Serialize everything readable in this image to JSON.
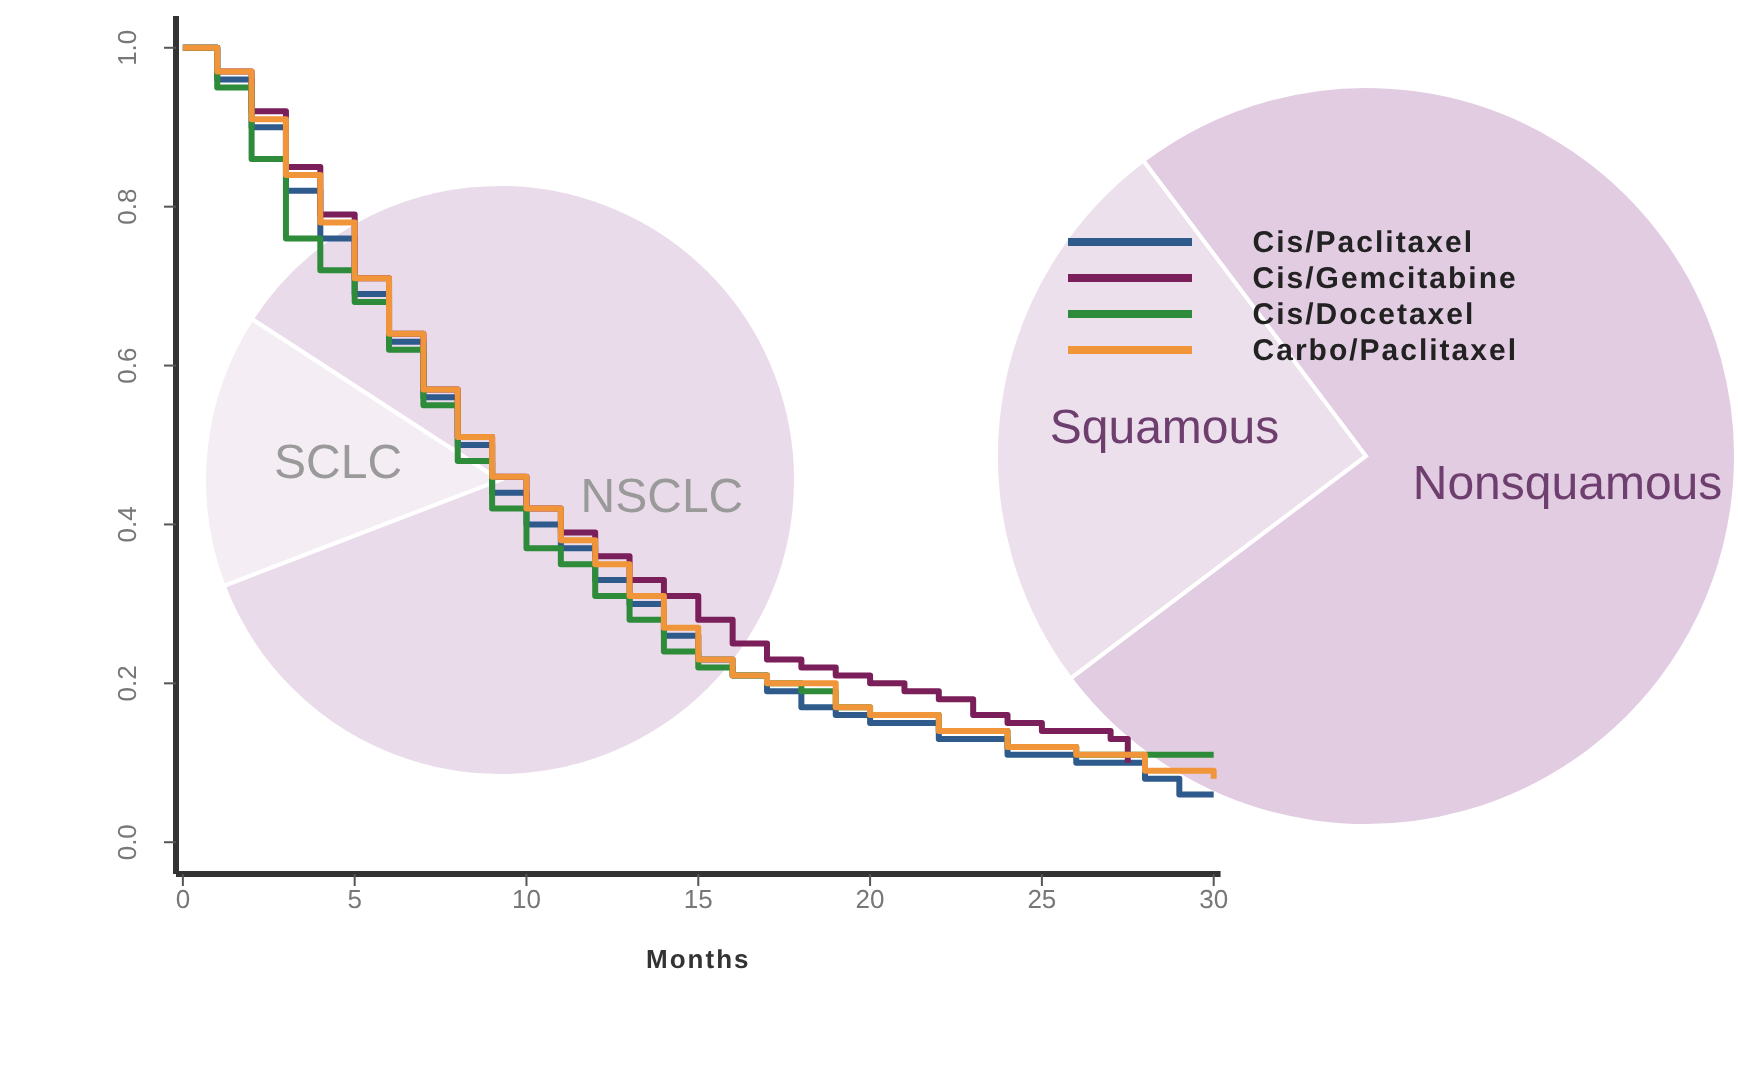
{
  "chart_data": [
    {
      "type": "step",
      "xlabel": "Months",
      "xlim": [
        -0.2,
        30.2
      ],
      "xticks": [
        0,
        5,
        10,
        15,
        20,
        25,
        30
      ],
      "ylim": [
        -0.04,
        1.04
      ],
      "yticks": [
        {
          "value": 0,
          "label": "0.0"
        },
        0.2,
        0.4,
        0.6,
        0.8,
        {
          "value": 1,
          "label": "1.0"
        }
      ],
      "legend": "top right",
      "marker": "none",
      "line_style": "solid",
      "series": [
        {
          "name": "Cis/Paclitaxel",
          "color": "#2e5a8c",
          "x": [
            0,
            1,
            2,
            3,
            4,
            5,
            6,
            7,
            8,
            9,
            10,
            11,
            12,
            13,
            14,
            15,
            16,
            17,
            18,
            19,
            20,
            22,
            24,
            26,
            27,
            28,
            29,
            30
          ],
          "values": [
            1,
            0.96,
            0.9,
            0.82,
            0.76,
            0.69,
            0.63,
            0.56,
            0.5,
            0.44,
            0.4,
            0.37,
            0.33,
            0.3,
            0.26,
            0.23,
            0.21,
            0.19,
            0.17,
            0.16,
            0.15,
            0.13,
            0.11,
            0.1,
            0.1,
            0.08,
            0.06,
            0.06
          ]
        },
        {
          "name": "Cis/Gemcitabine",
          "color": "#7b1f5a",
          "x": [
            0,
            1,
            2,
            3,
            4,
            5,
            6,
            7,
            8,
            9,
            10,
            11,
            12,
            13,
            14,
            15,
            16,
            17,
            18,
            19,
            20,
            21,
            22,
            23,
            24,
            25,
            26,
            27,
            27.5
          ],
          "values": [
            1,
            0.97,
            0.92,
            0.85,
            0.79,
            0.71,
            0.64,
            0.57,
            0.51,
            0.46,
            0.42,
            0.39,
            0.36,
            0.33,
            0.31,
            0.28,
            0.25,
            0.23,
            0.22,
            0.21,
            0.2,
            0.19,
            0.18,
            0.16,
            0.15,
            0.14,
            0.14,
            0.13,
            0.1
          ]
        },
        {
          "name": "Cis/Docetaxel",
          "color": "#2e8b3a",
          "x": [
            0,
            1,
            2,
            3,
            4,
            5,
            6,
            7,
            8,
            9,
            10,
            11,
            12,
            13,
            14,
            15,
            16,
            17,
            18,
            19,
            20,
            22,
            24,
            26,
            28,
            30
          ],
          "values": [
            1,
            0.95,
            0.86,
            0.76,
            0.72,
            0.68,
            0.62,
            0.55,
            0.48,
            0.42,
            0.37,
            0.35,
            0.31,
            0.28,
            0.24,
            0.22,
            0.21,
            0.2,
            0.19,
            0.17,
            0.16,
            0.14,
            0.12,
            0.11,
            0.11,
            0.11
          ]
        },
        {
          "name": "Carbo/Paclitaxel",
          "color": "#f0953a",
          "x": [
            0,
            1,
            2,
            3,
            4,
            5,
            6,
            7,
            8,
            9,
            10,
            11,
            12,
            13,
            14,
            15,
            16,
            17,
            18,
            19,
            20,
            22,
            24,
            26,
            27,
            28,
            30
          ],
          "values": [
            1,
            0.97,
            0.91,
            0.84,
            0.78,
            0.71,
            0.64,
            0.57,
            0.51,
            0.46,
            0.42,
            0.38,
            0.35,
            0.31,
            0.27,
            0.23,
            0.21,
            0.2,
            0.2,
            0.17,
            0.16,
            0.14,
            0.12,
            0.11,
            0.11,
            0.09,
            0.08
          ]
        }
      ]
    },
    {
      "type": "pie",
      "categories": [
        "SCLC",
        "NSCLC"
      ],
      "values": [
        15,
        85
      ],
      "colors": [
        "#f4eef4",
        "#eadbea"
      ]
    },
    {
      "type": "pie",
      "categories": [
        "Squamous",
        "Nonsquamous"
      ],
      "values": [
        25,
        75
      ],
      "colors": [
        "#ede0ed",
        "#e2cce2"
      ]
    }
  ]
}
